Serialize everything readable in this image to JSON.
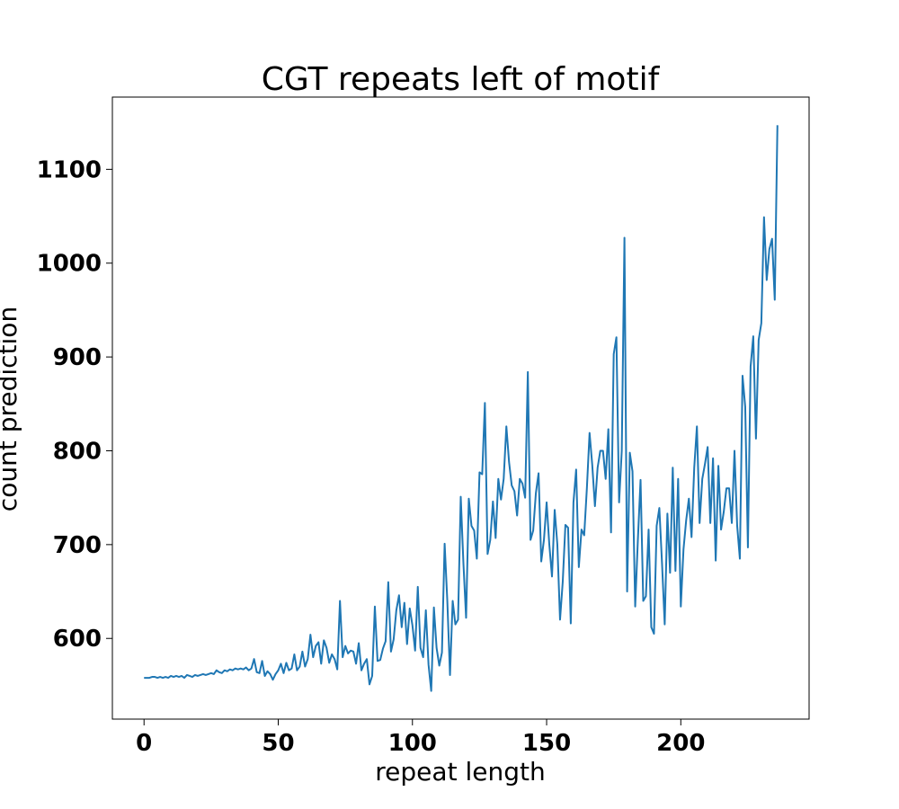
{
  "chart_data": {
    "type": "line",
    "title": "CGT repeats left of motif",
    "xlabel": "repeat length",
    "ylabel": "count prediction",
    "color": "#1f77b4",
    "x": [
      0,
      1,
      2,
      3,
      4,
      5,
      6,
      7,
      8,
      9,
      10,
      11,
      12,
      13,
      14,
      15,
      16,
      17,
      18,
      19,
      20,
      21,
      22,
      23,
      24,
      25,
      26,
      27,
      28,
      29,
      30,
      31,
      32,
      33,
      34,
      35,
      36,
      37,
      38,
      39,
      40,
      41,
      42,
      43,
      44,
      45,
      46,
      47,
      48,
      49,
      50,
      51,
      52,
      53,
      54,
      55,
      56,
      57,
      58,
      59,
      60,
      61,
      62,
      63,
      64,
      65,
      66,
      67,
      68,
      69,
      70,
      71,
      72,
      73,
      74,
      75,
      76,
      77,
      78,
      79,
      80,
      81,
      82,
      83,
      84,
      85,
      86,
      87,
      88,
      89,
      90,
      91,
      92,
      93,
      94,
      95,
      96,
      97,
      98,
      99,
      100,
      101,
      102,
      103,
      104,
      105,
      106,
      107,
      108,
      109,
      110,
      111,
      112,
      113,
      114,
      115,
      116,
      117,
      118,
      119,
      120,
      121,
      122,
      123,
      124,
      125,
      126,
      127,
      128,
      129,
      130,
      131,
      132,
      133,
      134,
      135,
      136,
      137,
      138,
      139,
      140,
      141,
      142,
      143,
      144,
      145,
      146,
      147,
      148,
      149,
      150,
      151,
      152,
      153,
      154,
      155,
      156,
      157,
      158,
      159,
      160,
      161,
      162,
      163,
      164,
      165,
      166,
      167,
      168,
      169,
      170,
      171,
      172,
      173,
      174,
      175,
      176,
      177,
      178,
      179,
      180,
      181,
      182,
      183,
      184,
      185,
      186,
      187,
      188,
      189,
      190,
      191,
      192,
      193,
      194,
      195,
      196,
      197,
      198,
      199,
      200,
      201,
      202,
      203,
      204,
      205,
      206,
      207,
      208,
      209,
      210,
      211,
      212,
      213,
      214,
      215,
      216,
      217,
      218,
      219,
      220,
      221,
      222,
      223,
      224,
      225,
      226,
      227,
      228,
      229,
      230,
      231,
      232,
      233,
      234,
      235,
      236
    ],
    "values": [
      558,
      558,
      558,
      559,
      559,
      558,
      559,
      558,
      559,
      558,
      560,
      559,
      560,
      559,
      560,
      558,
      561,
      560,
      559,
      561,
      560,
      561,
      562,
      561,
      562,
      563,
      562,
      566,
      564,
      563,
      566,
      565,
      567,
      566,
      568,
      567,
      568,
      567,
      569,
      566,
      568,
      578,
      564,
      563,
      576,
      560,
      565,
      562,
      556,
      562,
      566,
      573,
      563,
      574,
      566,
      568,
      583,
      566,
      570,
      586,
      570,
      578,
      604,
      580,
      592,
      596,
      573,
      598,
      590,
      574,
      583,
      578,
      567,
      640,
      580,
      592,
      584,
      587,
      586,
      573,
      595,
      566,
      573,
      578,
      551,
      560,
      634,
      576,
      577,
      589,
      597,
      660,
      586,
      599,
      630,
      646,
      612,
      638,
      594,
      632,
      614,
      587,
      655,
      590,
      580,
      630,
      572,
      544,
      633,
      590,
      571,
      585,
      701,
      640,
      561,
      640,
      615,
      620,
      751,
      680,
      622,
      749,
      720,
      715,
      685,
      777,
      775,
      851,
      690,
      705,
      746,
      707,
      770,
      748,
      770,
      826,
      788,
      763,
      757,
      731,
      770,
      765,
      750,
      884,
      705,
      715,
      755,
      776,
      682,
      705,
      745,
      700,
      666,
      737,
      700,
      620,
      660,
      721,
      718,
      616,
      745,
      780,
      676,
      716,
      710,
      760,
      819,
      785,
      741,
      782,
      800,
      800,
      770,
      823,
      713,
      903,
      921,
      745,
      800,
      1027,
      650,
      798,
      778,
      634,
      705,
      769,
      640,
      645,
      716,
      612,
      605,
      720,
      739,
      680,
      615,
      733,
      670,
      782,
      672,
      770,
      634,
      695,
      726,
      749,
      708,
      782,
      826,
      723,
      770,
      786,
      804,
      723,
      792,
      683,
      784,
      716,
      735,
      760,
      760,
      723,
      800,
      720,
      685,
      880,
      847,
      697,
      890,
      922,
      813,
      918,
      936,
      1049,
      982,
      1015,
      1026,
      961,
      1147
    ],
    "xlim": [
      -11.8,
      247.8
    ],
    "ylim": [
      514,
      1177
    ],
    "xticks": [
      0,
      50,
      100,
      150,
      200
    ],
    "yticks": [
      600,
      700,
      800,
      900,
      1000,
      1100
    ]
  }
}
